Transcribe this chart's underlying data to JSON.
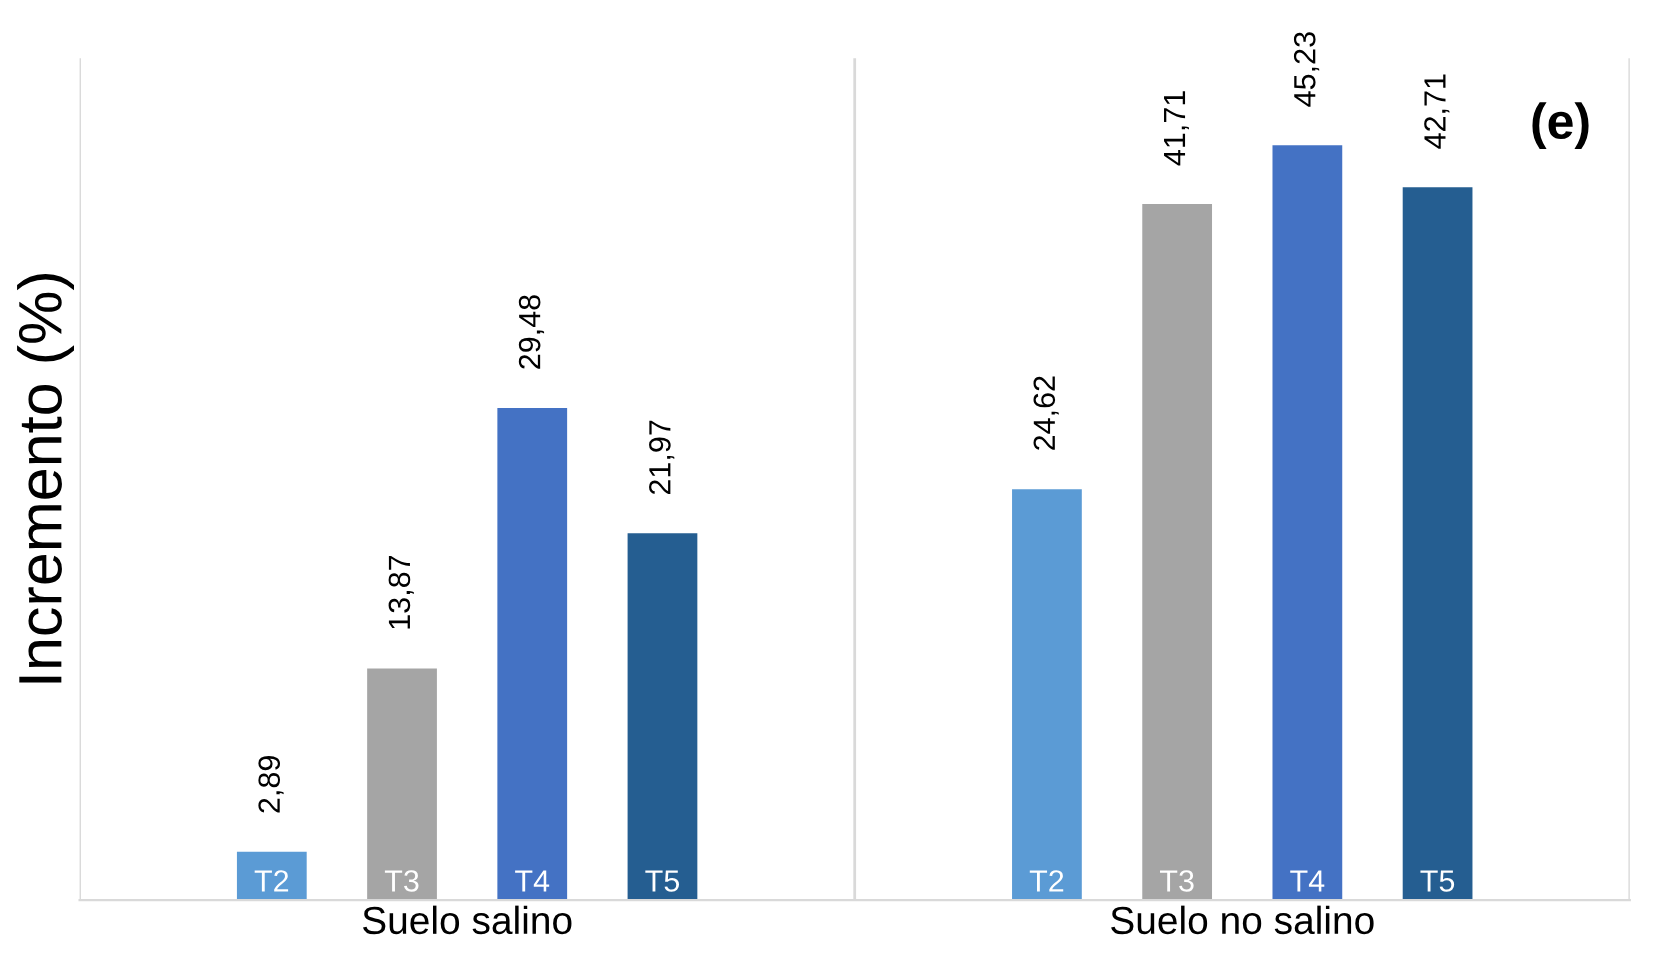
{
  "chart_data": {
    "type": "bar",
    "title": "(e)",
    "ylabel": "Incremento (%)",
    "categories": [
      "Suelo salino",
      "Suelo no salino"
    ],
    "series": [
      {
        "name": "T2",
        "color": "#5b9bd5",
        "values": [
          2.89,
          24.62
        ],
        "value_labels": [
          "2,89",
          "24,62"
        ]
      },
      {
        "name": "T3",
        "color": "#a5a5a5",
        "values": [
          13.87,
          41.71
        ],
        "value_labels": [
          "13,87",
          "41,71"
        ]
      },
      {
        "name": "T4",
        "color": "#4472c4",
        "values": [
          29.48,
          45.23
        ],
        "value_labels": [
          "29,48",
          "45,23"
        ]
      },
      {
        "name": "T5",
        "color": "#255e91",
        "values": [
          21.97,
          42.71
        ],
        "value_labels": [
          "21,97",
          "42,71"
        ]
      }
    ],
    "grid": "x",
    "legend": false
  }
}
